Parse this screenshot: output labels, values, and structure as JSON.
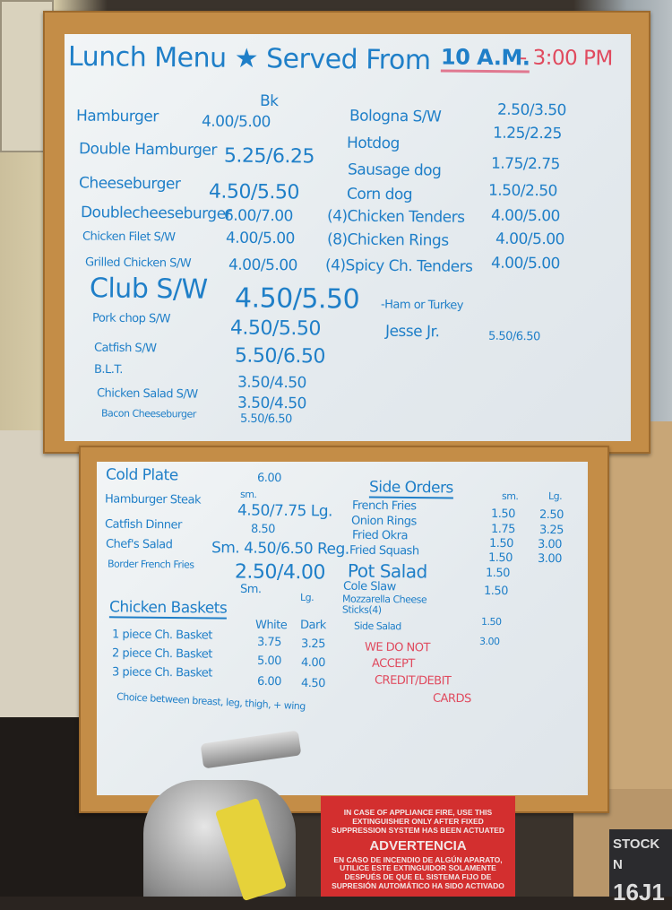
{
  "top_board": {
    "title": "Lunch Menu ★ Served From",
    "time_start": "10 A.M.",
    "time_end": "- 3:00 PM",
    "bk_label": "Bk",
    "left": [
      {
        "name": "Hamburger",
        "price": "4.00/5.00"
      },
      {
        "name": "Double Hamburger",
        "price": "5.25/6.25"
      },
      {
        "name": "Cheeseburger",
        "price": "4.50/5.50"
      },
      {
        "name": "Doublecheeseburger",
        "price": "6.00/7.00"
      },
      {
        "name": "Chicken Filet S/W",
        "price": "4.00/5.00"
      },
      {
        "name": "Grilled Chicken S/W",
        "price": "4.00/5.00"
      },
      {
        "name": "Club S/W",
        "price": "4.50/5.50",
        "note": "-Ham or Turkey"
      },
      {
        "name": "Pork chop S/W",
        "price": "4.50/5.50"
      },
      {
        "name": "Catfish S/W",
        "price": "5.50/6.50"
      },
      {
        "name": "B.L.T.",
        "price": "3.50/4.50"
      },
      {
        "name": "Chicken Salad S/W",
        "price": "3.50/4.50"
      },
      {
        "name": "Bacon Cheeseburger",
        "price": "5.50/6.50"
      }
    ],
    "right": [
      {
        "name": "Bologna S/W",
        "price": "2.50/3.50"
      },
      {
        "name": "Hotdog",
        "price": "1.25/2.25"
      },
      {
        "name": "Sausage dog",
        "price": "1.75/2.75"
      },
      {
        "name": "Corn dog",
        "price": "1.50/2.50"
      },
      {
        "name": "(4)Chicken Tenders",
        "price": "4.00/5.00"
      },
      {
        "name": "(8)Chicken Rings",
        "price": "4.00/5.00"
      },
      {
        "name": "(4)Spicy Ch. Tenders",
        "price": "4.00/5.00"
      },
      {
        "name": "Jesse Jr.",
        "price": "5.50/6.50"
      }
    ]
  },
  "bottom_board": {
    "plates": [
      {
        "name": "Cold Plate",
        "price": "6.00"
      },
      {
        "name": "Hamburger Steak",
        "size_label": "sm.",
        "price": "4.50/7.75 Lg."
      },
      {
        "name": "Catfish Dinner",
        "price": "8.50"
      },
      {
        "name": "Chef's Salad",
        "price": "Sm. 4.50/6.50 Reg."
      },
      {
        "name": "Border French Fries",
        "price": "2.50/4.00",
        "small_label": "Sm.",
        "large_label": "Lg."
      }
    ],
    "chicken_baskets": {
      "heading": "Chicken Baskets",
      "col_white": "White",
      "col_dark": "Dark",
      "items": [
        {
          "name": "1 piece Ch. Basket",
          "white": "3.75",
          "dark": "3.25"
        },
        {
          "name": "2 piece Ch. Basket",
          "white": "5.00",
          "dark": "4.00"
        },
        {
          "name": "3 piece Ch. Basket",
          "white": "6.00",
          "dark": "4.50"
        }
      ],
      "note": "Choice between breast, leg, thigh, + wing"
    },
    "side_orders": {
      "heading": "Side Orders",
      "col_sm": "sm.",
      "col_lg": "Lg.",
      "items": [
        {
          "name": "French Fries",
          "sm": "1.50",
          "lg": "2.50"
        },
        {
          "name": "Onion Rings",
          "sm": "1.75",
          "lg": "3.25"
        },
        {
          "name": "Fried Okra",
          "sm": "1.50",
          "lg": "3.00"
        },
        {
          "name": "Fried Squash",
          "sm": "1.50",
          "lg": "3.00"
        },
        {
          "name": "Pot Salad",
          "sm": "1.50"
        },
        {
          "name": "Cole Slaw",
          "sm": "1.50"
        },
        {
          "name": "Mozzarella Cheese Sticks(4)",
          "sm": "1.50"
        },
        {
          "name": "Side Salad",
          "sm": "3.00"
        }
      ]
    },
    "payment_notice": [
      "WE DO NOT",
      "ACCEPT",
      "CREDIT/DEBIT",
      "CARDS"
    ]
  },
  "warning_sign": {
    "english": "IN CASE OF APPLIANCE FIRE, USE THIS EXTINGUISHER ONLY AFTER FIXED SUPPRESSION SYSTEM HAS BEEN ACTUATED",
    "heading": "ADVERTENCIA",
    "spanish": "EN CASO DE INCENDIO DE ALGÚN APARATO, UTILICE ESTE EXTINGUIDOR SOLAMENTE DESPUÉS DE QUE EL SISTEMA FIJO DE SUPRESIÓN AUTOMÁTICO HA SIDO ACTIVADO"
  },
  "box_label": {
    "line1": "STOCK N",
    "line2": "16J1"
  },
  "colors": {
    "ink_blue": "#1f7fc8",
    "ink_red": "#e04a5e",
    "frame": "#c48d47",
    "sign_red": "#d32f2f"
  }
}
